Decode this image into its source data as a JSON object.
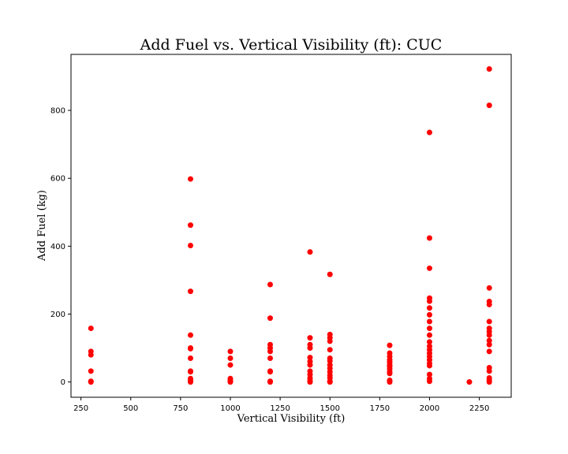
{
  "chart_data": {
    "type": "scatter",
    "title": "Add Fuel vs. Vertical Visibility (ft): CUC",
    "xlabel": "Vertical Visibility (ft)",
    "ylabel": "Add Fuel (kg)",
    "xlim": [
      200,
      2410
    ],
    "ylim": [
      -45,
      965
    ],
    "xticks": [
      250,
      500,
      750,
      1000,
      1250,
      1500,
      1750,
      2000,
      2250
    ],
    "yticks": [
      0,
      200,
      400,
      600,
      800
    ],
    "grid": false,
    "marker_color": "#ff0000",
    "series": [
      {
        "points": [
          [
            300,
            158
          ],
          [
            300,
            90
          ],
          [
            300,
            80
          ],
          [
            300,
            32
          ],
          [
            300,
            2
          ],
          [
            300,
            0
          ],
          [
            800,
            598
          ],
          [
            800,
            462
          ],
          [
            800,
            402
          ],
          [
            800,
            267
          ],
          [
            800,
            138
          ],
          [
            800,
            100
          ],
          [
            800,
            98
          ],
          [
            800,
            70
          ],
          [
            800,
            32
          ],
          [
            800,
            30
          ],
          [
            800,
            10
          ],
          [
            800,
            5
          ],
          [
            800,
            2
          ],
          [
            800,
            0
          ],
          [
            1000,
            90
          ],
          [
            1000,
            70
          ],
          [
            1000,
            50
          ],
          [
            1000,
            10
          ],
          [
            1000,
            5
          ],
          [
            1000,
            2
          ],
          [
            1000,
            0
          ],
          [
            1200,
            287
          ],
          [
            1200,
            188
          ],
          [
            1200,
            110
          ],
          [
            1200,
            100
          ],
          [
            1200,
            90
          ],
          [
            1200,
            70
          ],
          [
            1200,
            32
          ],
          [
            1200,
            30
          ],
          [
            1200,
            2
          ],
          [
            1200,
            0
          ],
          [
            1400,
            383
          ],
          [
            1400,
            130
          ],
          [
            1400,
            110
          ],
          [
            1400,
            100
          ],
          [
            1400,
            72
          ],
          [
            1400,
            60
          ],
          [
            1400,
            50
          ],
          [
            1400,
            32
          ],
          [
            1400,
            22
          ],
          [
            1400,
            12
          ],
          [
            1400,
            5
          ],
          [
            1400,
            0
          ],
          [
            1500,
            317
          ],
          [
            1500,
            140
          ],
          [
            1500,
            130
          ],
          [
            1500,
            120
          ],
          [
            1500,
            95
          ],
          [
            1500,
            70
          ],
          [
            1500,
            62
          ],
          [
            1500,
            50
          ],
          [
            1500,
            40
          ],
          [
            1500,
            30
          ],
          [
            1500,
            20
          ],
          [
            1500,
            12
          ],
          [
            1500,
            2
          ],
          [
            1500,
            0
          ],
          [
            1800,
            108
          ],
          [
            1800,
            85
          ],
          [
            1800,
            75
          ],
          [
            1800,
            65
          ],
          [
            1800,
            58
          ],
          [
            1800,
            50
          ],
          [
            1800,
            45
          ],
          [
            1800,
            38
          ],
          [
            1800,
            30
          ],
          [
            1800,
            25
          ],
          [
            1800,
            5
          ],
          [
            1800,
            0
          ],
          [
            2000,
            735
          ],
          [
            2000,
            424
          ],
          [
            2000,
            335
          ],
          [
            2000,
            247
          ],
          [
            2000,
            238
          ],
          [
            2000,
            218
          ],
          [
            2000,
            198
          ],
          [
            2000,
            178
          ],
          [
            2000,
            158
          ],
          [
            2000,
            138
          ],
          [
            2000,
            118
          ],
          [
            2000,
            105
          ],
          [
            2000,
            95
          ],
          [
            2000,
            85
          ],
          [
            2000,
            75
          ],
          [
            2000,
            65
          ],
          [
            2000,
            55
          ],
          [
            2000,
            48
          ],
          [
            2000,
            22
          ],
          [
            2000,
            10
          ],
          [
            2000,
            2
          ],
          [
            2200,
            0
          ],
          [
            2300,
            922
          ],
          [
            2300,
            815
          ],
          [
            2300,
            277
          ],
          [
            2300,
            237
          ],
          [
            2300,
            228
          ],
          [
            2300,
            178
          ],
          [
            2300,
            158
          ],
          [
            2300,
            148
          ],
          [
            2300,
            138
          ],
          [
            2300,
            122
          ],
          [
            2300,
            110
          ],
          [
            2300,
            90
          ],
          [
            2300,
            42
          ],
          [
            2300,
            32
          ],
          [
            2300,
            12
          ],
          [
            2300,
            5
          ],
          [
            2300,
            0
          ]
        ]
      }
    ]
  }
}
